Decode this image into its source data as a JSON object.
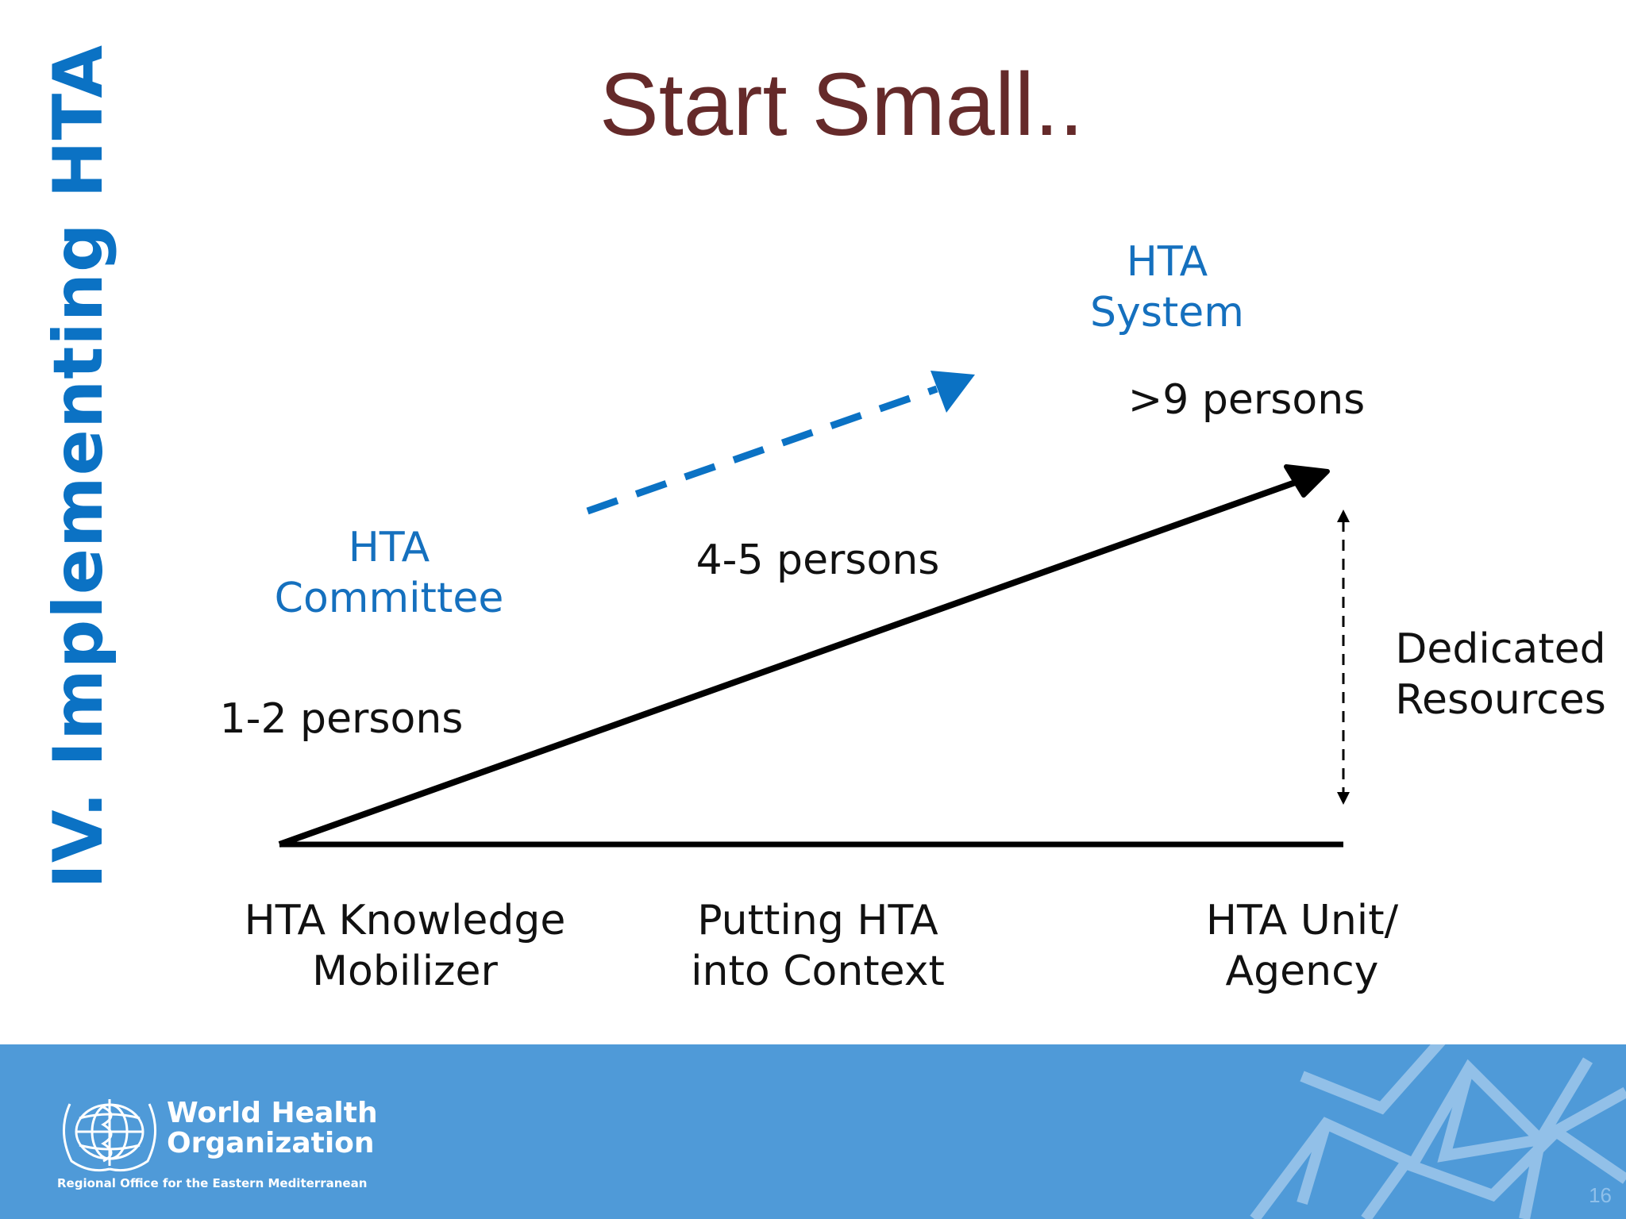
{
  "slide": {
    "title": "Start Small..",
    "side_title": "IV. Implementing HTA",
    "page_number": "16"
  },
  "diagram": {
    "stages": [
      {
        "label": "HTA Knowledge\nMobilizer",
        "persons": "1-2 persons",
        "body": "HTA\nCommittee"
      },
      {
        "label": "Putting HTA\ninto Context",
        "persons": "4-5 persons"
      },
      {
        "label": "HTA Unit/\nAgency",
        "persons": ">9 persons",
        "body": "HTA\nSystem"
      }
    ],
    "resources_label": "Dedicated\nResources"
  },
  "footer": {
    "org_name": "World Health\nOrganization",
    "org_sub": "Regional Office for the Eastern Mediterranean"
  },
  "colors": {
    "title": "#652a2a",
    "accent_blue": "#1570be",
    "side_title": "#0b72c4",
    "footer_bg": "#4f9ad8",
    "text": "#111111"
  }
}
